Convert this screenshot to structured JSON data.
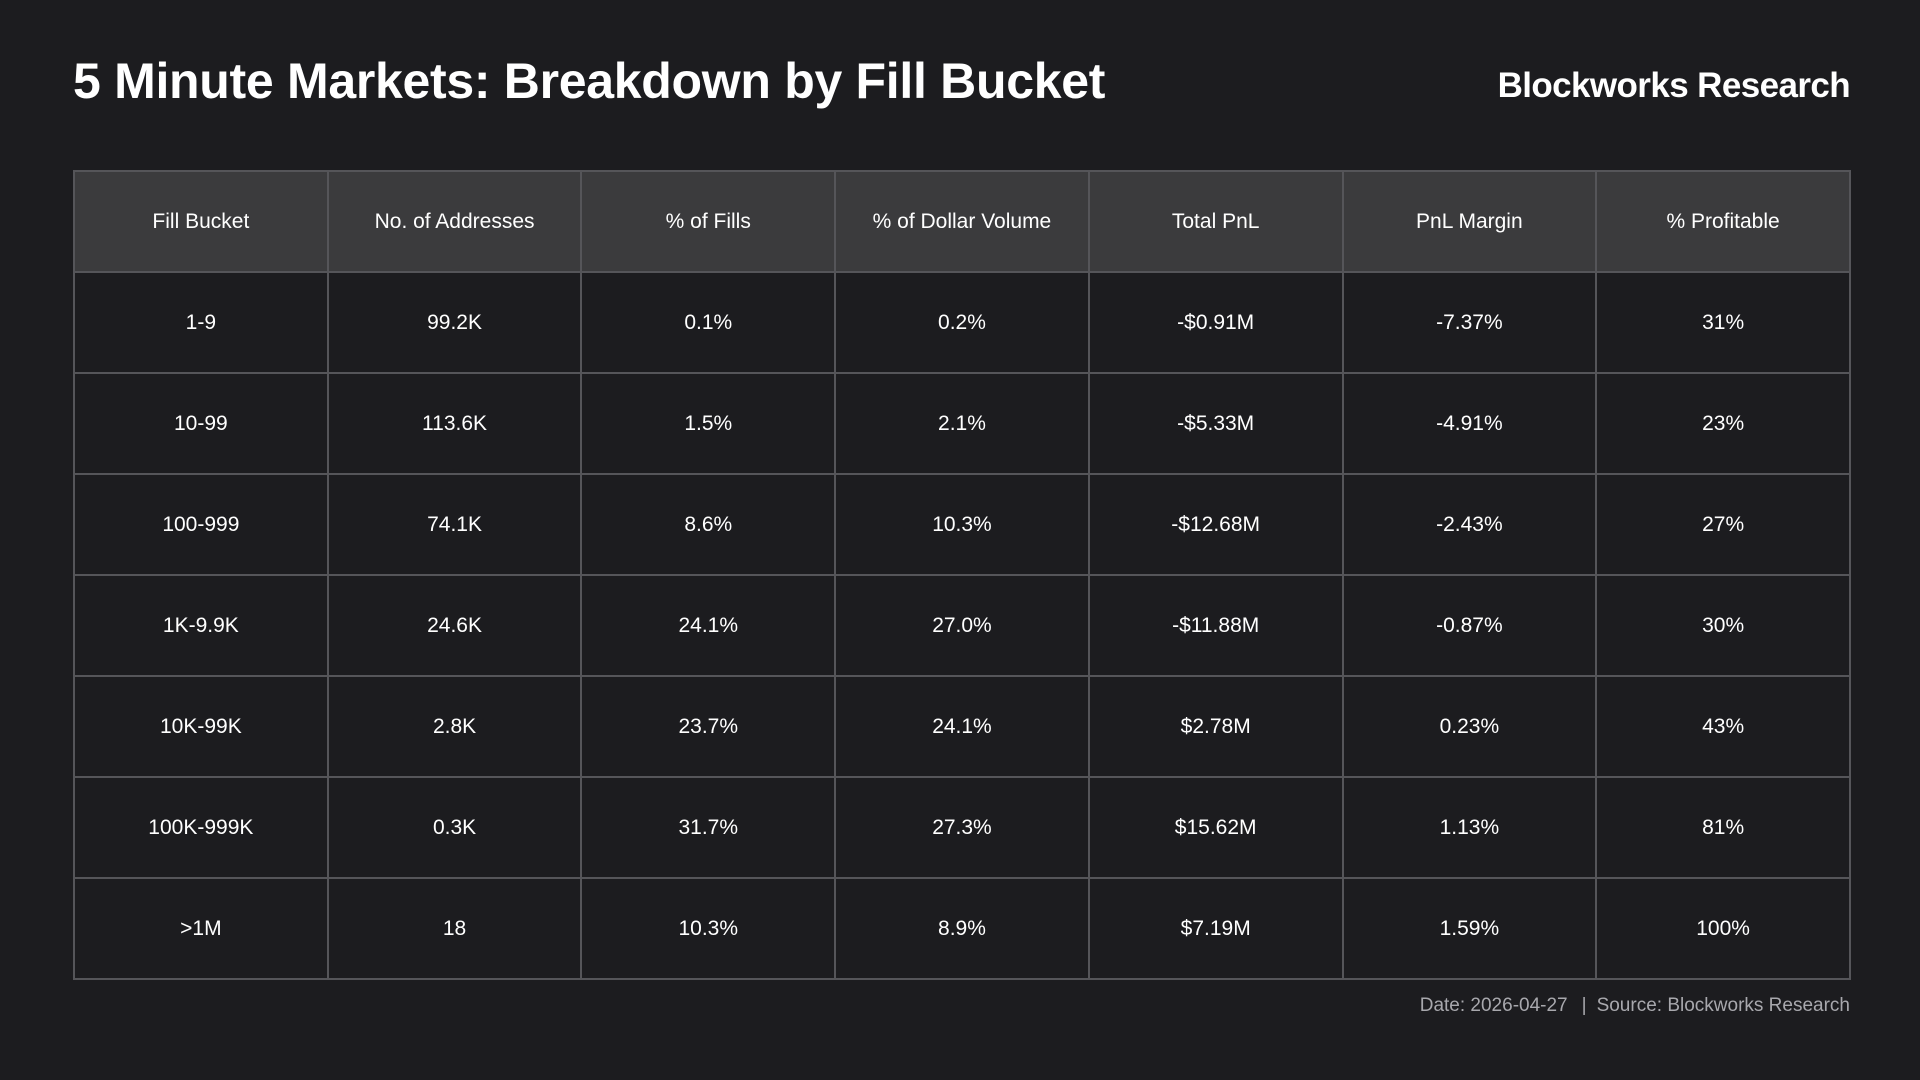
{
  "header": {
    "title": "5 Minute Markets: Breakdown by Fill Bucket",
    "brand": "Blockworks Research"
  },
  "chart_data": {
    "type": "table",
    "columns": [
      "Fill Bucket",
      "No. of Addresses",
      "% of Fills",
      "% of Dollar Volume",
      "Total PnL",
      "PnL Margin",
      "% Profitable"
    ],
    "rows": [
      [
        "1-9",
        "99.2K",
        "0.1%",
        "0.2%",
        "-$0.91M",
        "-7.37%",
        "31%"
      ],
      [
        "10-99",
        "113.6K",
        "1.5%",
        "2.1%",
        "-$5.33M",
        "-4.91%",
        "23%"
      ],
      [
        "100-999",
        "74.1K",
        "8.6%",
        "10.3%",
        "-$12.68M",
        "-2.43%",
        "27%"
      ],
      [
        "1K-9.9K",
        "24.6K",
        "24.1%",
        "27.0%",
        "-$11.88M",
        "-0.87%",
        "30%"
      ],
      [
        "10K-99K",
        "2.8K",
        "23.7%",
        "24.1%",
        "$2.78M",
        "0.23%",
        "43%"
      ],
      [
        "100K-999K",
        "0.3K",
        "31.7%",
        "27.3%",
        "$15.62M",
        "1.13%",
        "81%"
      ],
      [
        ">1M",
        "18",
        "10.3%",
        "8.9%",
        "$7.19M",
        "1.59%",
        "100%"
      ]
    ]
  },
  "footer": {
    "date": "Date: 2026-04-27",
    "separator": "|",
    "source": "Source: Blockworks Research"
  },
  "colors": {
    "background": "#1c1c1f",
    "header_row": "#3b3b3d",
    "grid": "#555559",
    "text": "#ffffff",
    "footer_text": "#a8a8ad"
  }
}
